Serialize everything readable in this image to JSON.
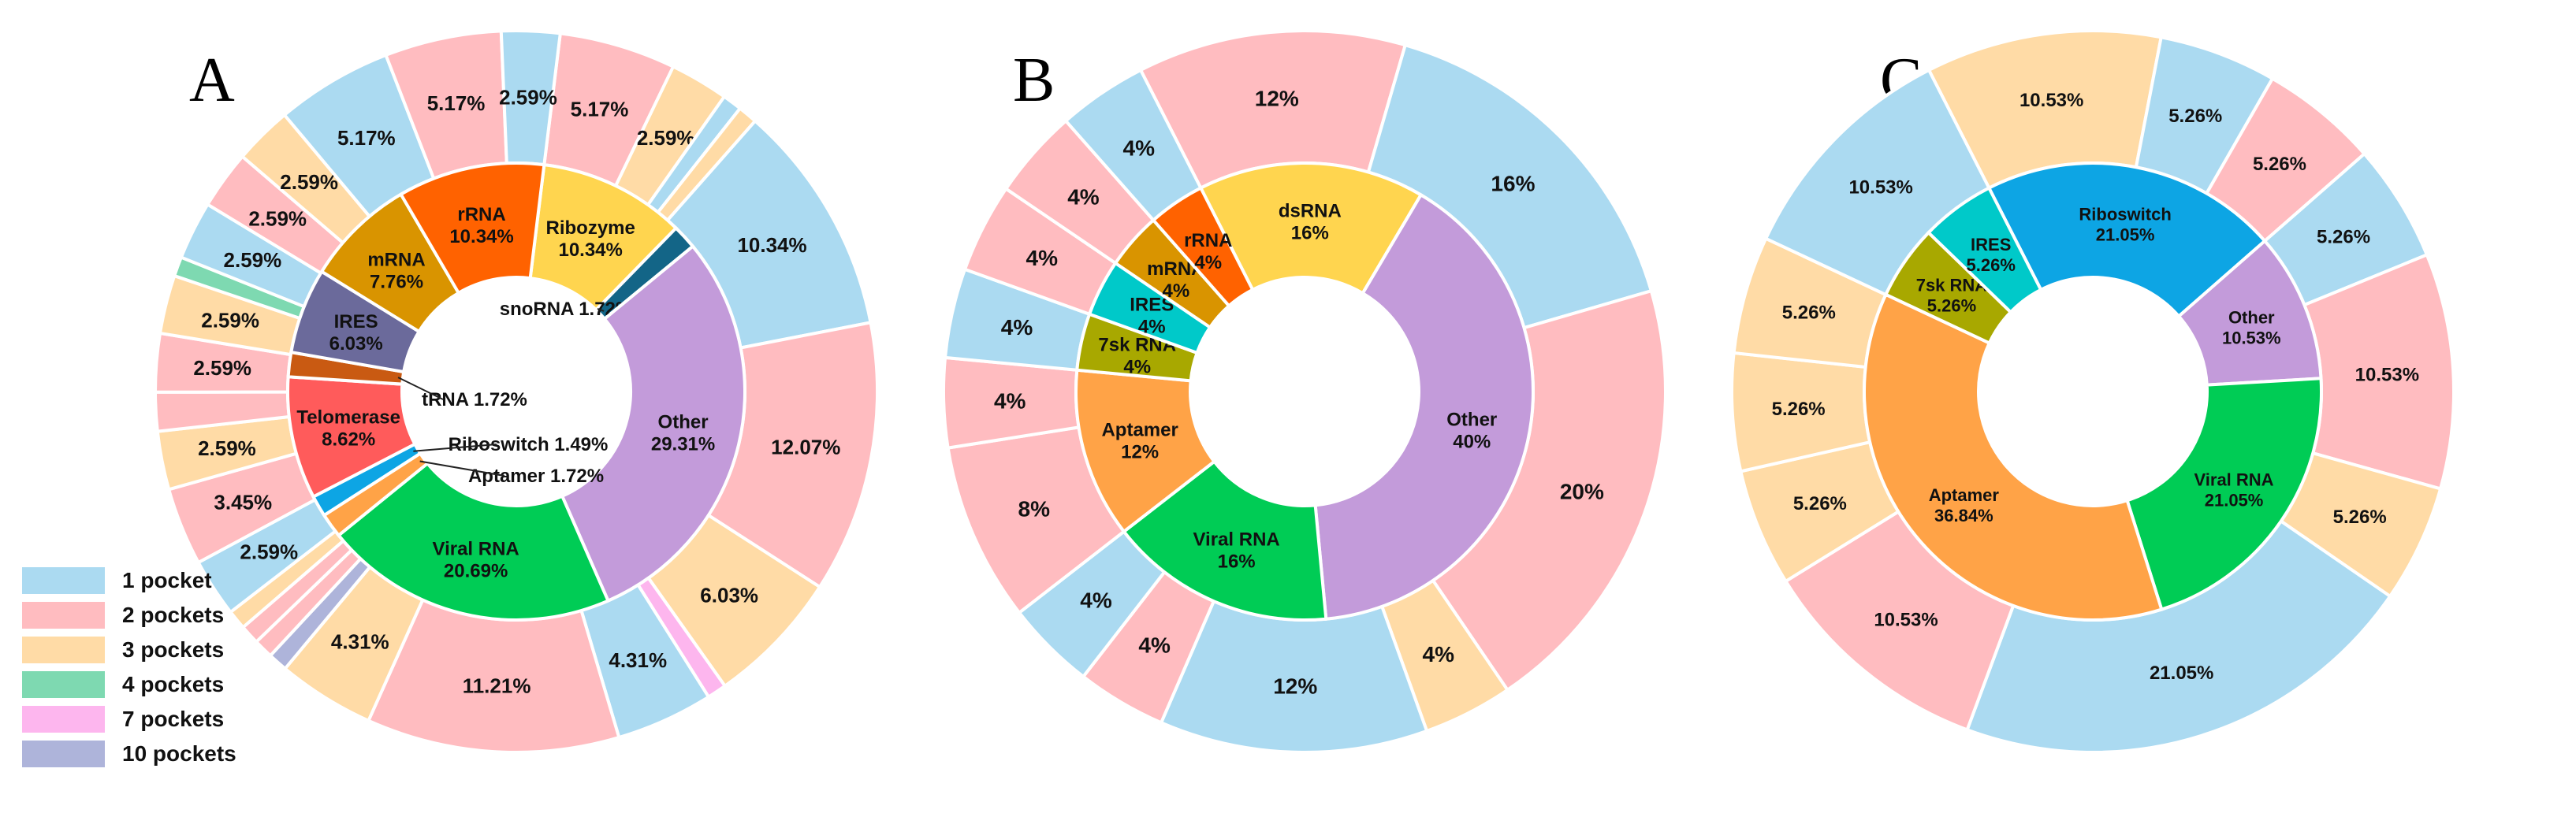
{
  "colors": {
    "pockets_1": "#ABDAF1",
    "pockets_2": "#FFBCC0",
    "pockets_3": "#FFDBA6",
    "pockets_4": "#7ED9B1",
    "pockets_7": "#FDB6EE",
    "pockets_10": "#AEB4DA"
  },
  "legend": [
    {
      "label": "1 pocket",
      "color": "#ABDAF1"
    },
    {
      "label": "2 pockets",
      "color": "#FFBCC0"
    },
    {
      "label": "3 pockets",
      "color": "#FFDBA6"
    },
    {
      "label": "4 pockets",
      "color": "#7ED9B1"
    },
    {
      "label": "7 pockets",
      "color": "#FDB6EE"
    },
    {
      "label": "10 pockets",
      "color": "#AEB4DA"
    }
  ],
  "chart_data": [
    {
      "type": "pie",
      "panel": "A",
      "inner": [
        {
          "name": "Ribozyme",
          "value": 10.34,
          "label": "10.34%",
          "color": "#FFD54F"
        },
        {
          "name": "snoRNA",
          "value": 1.72,
          "label": "1.72%",
          "color": "#136587"
        },
        {
          "name": "Other",
          "value": 29.31,
          "label": "29.31%",
          "color": "#C39BDA"
        },
        {
          "name": "Viral RNA",
          "value": 20.69,
          "label": "20.69%",
          "color": "#00CC55"
        },
        {
          "name": "Aptamer",
          "value": 1.72,
          "label": "1.72%",
          "color": "#FFA347"
        },
        {
          "name": "Riboswitch",
          "value": 1.49,
          "label": "1.49%",
          "color": "#0DA5E4"
        },
        {
          "name": "Telomerase",
          "value": 8.62,
          "label": "8.62%",
          "color": "#FF5B5B"
        },
        {
          "name": "tRNA",
          "value": 1.72,
          "label": "1.72%",
          "color": "#C95A12"
        },
        {
          "name": "IRES",
          "value": 6.03,
          "label": "6.03%",
          "color": "#6B6A9B"
        },
        {
          "name": "mRNA",
          "value": 7.76,
          "label": "7.76%",
          "color": "#D99400"
        },
        {
          "name": "rRNA",
          "value": 10.34,
          "label": "10.34%",
          "color": "#FF6200"
        }
      ],
      "outer": [
        {
          "pockets": "2 pockets",
          "value": 5.17,
          "label": "5.17%"
        },
        {
          "pockets": "3 pockets",
          "value": 2.59,
          "label": "2.59%"
        },
        {
          "pockets": "1 pocket",
          "value": 0.86,
          "label": ""
        },
        {
          "pockets": "3 pockets",
          "value": 0.86,
          "label": ""
        },
        {
          "pockets": "1 pocket",
          "value": 10.34,
          "label": "10.34%"
        },
        {
          "pockets": "2 pockets",
          "value": 12.07,
          "label": "12.07%"
        },
        {
          "pockets": "3 pockets",
          "value": 6.03,
          "label": "6.03%"
        },
        {
          "pockets": "7 pockets",
          "value": 0.86,
          "label": ""
        },
        {
          "pockets": "1 pocket",
          "value": 4.31,
          "label": "4.31%"
        },
        {
          "pockets": "2 pockets",
          "value": 11.21,
          "label": "11.21%"
        },
        {
          "pockets": "3 pockets",
          "value": 4.31,
          "label": "4.31%"
        },
        {
          "pockets": "10 pockets",
          "value": 0.86,
          "label": ""
        },
        {
          "pockets": "2 pockets",
          "value": 0.86,
          "label": ""
        },
        {
          "pockets": "2 pockets",
          "value": 0.86,
          "label": ""
        },
        {
          "pockets": "3 pockets",
          "value": 0.86,
          "label": ""
        },
        {
          "pockets": "1 pocket",
          "value": 2.59,
          "label": "2.59%"
        },
        {
          "pockets": "2 pockets",
          "value": 3.45,
          "label": "3.45%"
        },
        {
          "pockets": "3 pockets",
          "value": 2.59,
          "label": "2.59%"
        },
        {
          "pockets": "2 pockets",
          "value": 1.72,
          "label": ""
        },
        {
          "pockets": "2 pockets",
          "value": 2.59,
          "label": "2.59%"
        },
        {
          "pockets": "3 pockets",
          "value": 2.59,
          "label": "2.59%"
        },
        {
          "pockets": "4 pockets",
          "value": 0.86,
          "label": ""
        },
        {
          "pockets": "1 pocket",
          "value": 2.59,
          "label": "2.59%"
        },
        {
          "pockets": "2 pockets",
          "value": 2.59,
          "label": "2.59%"
        },
        {
          "pockets": "3 pockets",
          "value": 2.59,
          "label": "2.59%"
        },
        {
          "pockets": "1 pocket",
          "value": 5.17,
          "label": "5.17%"
        },
        {
          "pockets": "2 pockets",
          "value": 5.17,
          "label": "5.17%"
        },
        {
          "pockets": "1 pocket",
          "value": 2.59,
          "label": "2.59%"
        }
      ]
    },
    {
      "type": "pie",
      "panel": "B",
      "inner": [
        {
          "name": "dsRNA",
          "value": 16,
          "label": "16%",
          "color": "#FFD54F"
        },
        {
          "name": "Other",
          "value": 40,
          "label": "40%",
          "color": "#C39BDA"
        },
        {
          "name": "Viral RNA",
          "value": 16,
          "label": "16%",
          "color": "#00CC55"
        },
        {
          "name": "Aptamer",
          "value": 12,
          "label": "12%",
          "color": "#FFA347"
        },
        {
          "name": "7sk RNA",
          "value": 4,
          "label": "4%",
          "color": "#A8A800"
        },
        {
          "name": "IRES",
          "value": 4,
          "label": "4%",
          "color": "#00C9C9"
        },
        {
          "name": "mRNA",
          "value": 4,
          "label": "4%",
          "color": "#D99400"
        },
        {
          "name": "rRNA",
          "value": 4,
          "label": "4%",
          "color": "#FF6200"
        }
      ],
      "outer": [
        {
          "pockets": "2 pockets",
          "value": 12,
          "label": "12%"
        },
        {
          "pockets": "1 pocket",
          "value": 16,
          "label": "16%"
        },
        {
          "pockets": "2 pockets",
          "value": 20,
          "label": "20%"
        },
        {
          "pockets": "3 pockets",
          "value": 4,
          "label": "4%"
        },
        {
          "pockets": "1 pocket",
          "value": 12,
          "label": "12%"
        },
        {
          "pockets": "2 pockets",
          "value": 4,
          "label": "4%"
        },
        {
          "pockets": "1 pocket",
          "value": 4,
          "label": "4%"
        },
        {
          "pockets": "2 pockets",
          "value": 8,
          "label": "8%"
        },
        {
          "pockets": "2 pockets",
          "value": 4,
          "label": "4%"
        },
        {
          "pockets": "1 pocket",
          "value": 4,
          "label": "4%"
        },
        {
          "pockets": "2 pockets",
          "value": 4,
          "label": "4%"
        },
        {
          "pockets": "2 pockets",
          "value": 4,
          "label": "4%"
        },
        {
          "pockets": "1 pocket",
          "value": 4,
          "label": "4%"
        }
      ]
    },
    {
      "type": "pie",
      "panel": "C",
      "inner": [
        {
          "name": "Riboswitch",
          "value": 21.05,
          "label": "21.05%",
          "color": "#0DA5E4"
        },
        {
          "name": "Other",
          "value": 10.53,
          "label": "10.53%",
          "color": "#C39BDA"
        },
        {
          "name": "Viral RNA",
          "value": 21.05,
          "label": "21.05%",
          "color": "#00CC55"
        },
        {
          "name": "Aptamer",
          "value": 36.84,
          "label": "36.84%",
          "color": "#FFA347"
        },
        {
          "name": "7sk RNA",
          "value": 5.26,
          "label": "5.26%",
          "color": "#A8A800"
        },
        {
          "name": "IRES",
          "value": 5.26,
          "label": "5.26%",
          "color": "#00C9C9"
        }
      ],
      "outer": [
        {
          "pockets": "3 pockets",
          "value": 10.53,
          "label": "10.53%"
        },
        {
          "pockets": "1 pocket",
          "value": 5.26,
          "label": "5.26%"
        },
        {
          "pockets": "2 pockets",
          "value": 5.26,
          "label": "5.26%"
        },
        {
          "pockets": "1 pocket",
          "value": 5.26,
          "label": "5.26%"
        },
        {
          "pockets": "2 pockets",
          "value": 10.53,
          "label": "10.53%"
        },
        {
          "pockets": "3 pockets",
          "value": 5.26,
          "label": "5.26%"
        },
        {
          "pockets": "1 pocket",
          "value": 21.05,
          "label": "21.05%"
        },
        {
          "pockets": "2 pockets",
          "value": 10.53,
          "label": "10.53%"
        },
        {
          "pockets": "3 pockets",
          "value": 5.26,
          "label": "5.26%"
        },
        {
          "pockets": "3 pockets",
          "value": 5.26,
          "label": "5.26%"
        },
        {
          "pockets": "3 pockets",
          "value": 5.26,
          "label": "5.26%"
        },
        {
          "pockets": "1 pocket",
          "value": 10.53,
          "label": "10.53%"
        }
      ]
    }
  ]
}
